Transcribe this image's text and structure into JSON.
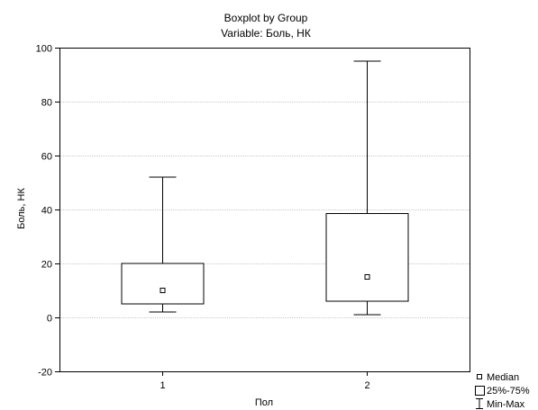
{
  "chart_data": {
    "type": "boxplot",
    "title": "Boxplot by Group",
    "subtitle": "Variable: Боль, НК",
    "xlabel": "Пол",
    "ylabel": "Боль, НК",
    "ylim": [
      -20,
      100
    ],
    "yticks": [
      -20,
      0,
      20,
      40,
      60,
      80,
      100
    ],
    "grid": true,
    "legend_position": "bottom-right",
    "categories": [
      "1",
      "2"
    ],
    "boxes": [
      {
        "category": "1",
        "min": 2,
        "q1": 5,
        "median": 10,
        "q3": 20,
        "max": 52
      },
      {
        "category": "2",
        "min": 1,
        "q1": 6,
        "median": 15,
        "q3": 38.5,
        "max": 95
      }
    ],
    "legend": {
      "median": "Median",
      "box": "25%-75%",
      "whisker": "Min-Max"
    }
  },
  "colors": {
    "line": "#000000",
    "grid": "#c8c8c8",
    "background": "#ffffff"
  }
}
